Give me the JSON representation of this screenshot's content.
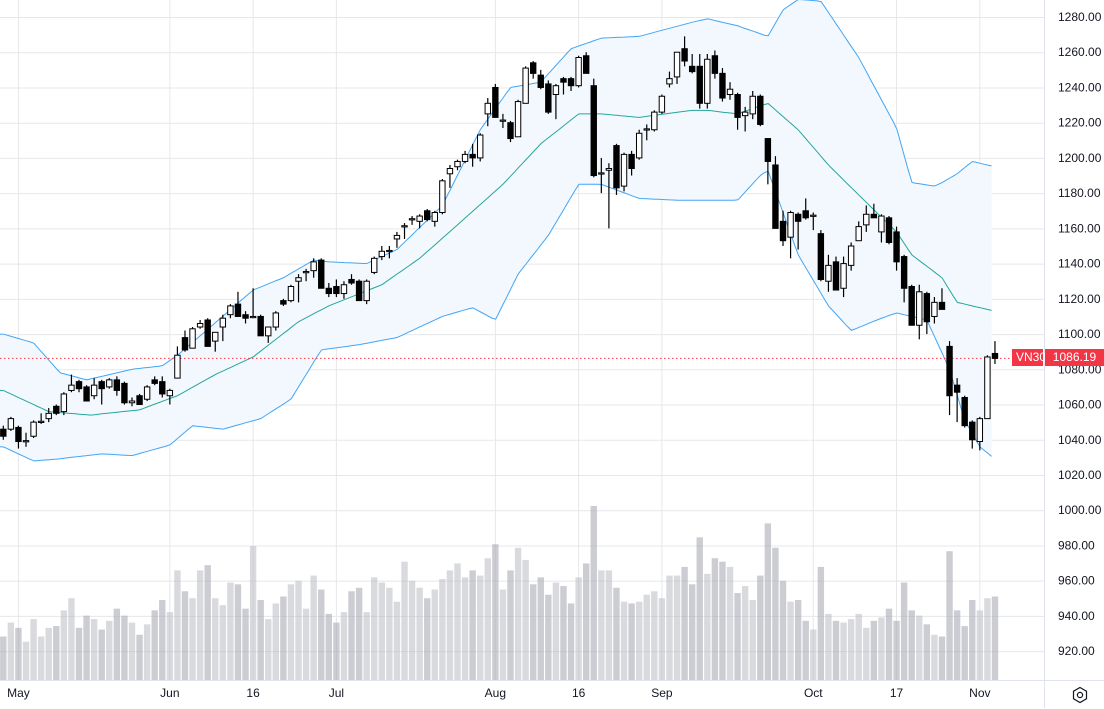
{
  "chart_data": {
    "type": "candlestick",
    "symbol": "VN30",
    "last_price": "1086.19",
    "ylim": [
      910,
      1290
    ],
    "y_ticks": [
      "1280.00",
      "1260.00",
      "1240.00",
      "1220.00",
      "1200.00",
      "1180.00",
      "1160.00",
      "1140.00",
      "1120.00",
      "1100.00",
      "1080.00",
      "1060.00",
      "1040.00",
      "1020.00",
      "1000.00",
      "980.00",
      "960.00",
      "940.00",
      "920.00"
    ],
    "x_ticks": [
      {
        "label": "May",
        "index": 2
      },
      {
        "label": "Jun",
        "index": 22
      },
      {
        "label": "16",
        "index": 33
      },
      {
        "label": "Jul",
        "index": 44
      },
      {
        "label": "Aug",
        "index": 65
      },
      {
        "label": "16",
        "index": 76
      },
      {
        "label": "Sep",
        "index": 87
      },
      {
        "label": "Oct",
        "index": 107
      },
      {
        "label": "17",
        "index": 118
      },
      {
        "label": "Nov",
        "index": 129
      }
    ],
    "candles_format": "[open, high, low, close]",
    "candles": [
      [
        1046,
        1048,
        1040,
        1042
      ],
      [
        1046,
        1053,
        1045,
        1052
      ],
      [
        1047,
        1048,
        1035,
        1039
      ],
      [
        1039,
        1044,
        1036,
        1039.5
      ],
      [
        1042,
        1051,
        1041,
        1050
      ],
      [
        1050,
        1055,
        1049,
        1050.5
      ],
      [
        1052,
        1058,
        1050,
        1055
      ],
      [
        1059,
        1060,
        1054,
        1055
      ],
      [
        1056,
        1067,
        1054,
        1066
      ],
      [
        1068,
        1077,
        1067,
        1071
      ],
      [
        1073,
        1074,
        1067,
        1069
      ],
      [
        1070,
        1071,
        1062,
        1062
      ],
      [
        1065,
        1075,
        1063,
        1071
      ],
      [
        1073,
        1074,
        1060,
        1069
      ],
      [
        1070,
        1075,
        1069,
        1074
      ],
      [
        1074,
        1076,
        1065,
        1068
      ],
      [
        1072,
        1073,
        1060,
        1061
      ],
      [
        1061,
        1064,
        1059,
        1062
      ],
      [
        1065,
        1066,
        1060,
        1060
      ],
      [
        1063,
        1071,
        1062,
        1070
      ],
      [
        1074,
        1076,
        1071,
        1072
      ],
      [
        1073,
        1076,
        1064,
        1066
      ],
      [
        1065,
        1069,
        1060,
        1068
      ],
      [
        1075,
        1093,
        1075,
        1088
      ],
      [
        1098,
        1102,
        1090,
        1091
      ],
      [
        1092,
        1104,
        1092,
        1103
      ],
      [
        1104,
        1108,
        1103,
        1106
      ],
      [
        1108,
        1109,
        1093,
        1093
      ],
      [
        1096,
        1101,
        1090,
        1101
      ],
      [
        1104,
        1111,
        1096,
        1109
      ],
      [
        1111,
        1117,
        1109,
        1116
      ],
      [
        1117,
        1124,
        1110,
        1110
      ],
      [
        1111,
        1113,
        1106,
        1109
      ],
      [
        1110,
        1126,
        1109,
        1110
      ],
      [
        1110,
        1111,
        1099,
        1099
      ],
      [
        1099,
        1104,
        1095,
        1104
      ],
      [
        1104,
        1113,
        1102,
        1112
      ],
      [
        1119,
        1120,
        1116,
        1117
      ],
      [
        1119,
        1128,
        1118,
        1127
      ],
      [
        1130,
        1134,
        1118,
        1132
      ],
      [
        1135,
        1137,
        1130,
        1135.5
      ],
      [
        1136,
        1143,
        1132,
        1141
      ],
      [
        1142,
        1143,
        1126,
        1126
      ],
      [
        1126,
        1129,
        1121,
        1123
      ],
      [
        1127,
        1131,
        1121,
        1123
      ],
      [
        1123,
        1130,
        1120,
        1128
      ],
      [
        1131,
        1134,
        1128,
        1129
      ],
      [
        1130,
        1131,
        1119,
        1119
      ],
      [
        1119,
        1131,
        1117,
        1130
      ],
      [
        1135,
        1144,
        1134,
        1143
      ],
      [
        1144,
        1150,
        1142,
        1147
      ],
      [
        1147,
        1150,
        1143,
        1147.5
      ],
      [
        1154,
        1158,
        1149,
        1156
      ],
      [
        1161,
        1163,
        1154,
        1161.5
      ],
      [
        1165,
        1167,
        1162,
        1165.5
      ],
      [
        1164,
        1168,
        1160,
        1167
      ],
      [
        1170,
        1171,
        1164,
        1165
      ],
      [
        1164,
        1170,
        1161,
        1169
      ],
      [
        1169,
        1188,
        1168,
        1187
      ],
      [
        1191,
        1196,
        1183,
        1194
      ],
      [
        1195,
        1199,
        1193,
        1198
      ],
      [
        1198,
        1204,
        1197,
        1202
      ],
      [
        1202,
        1208,
        1195,
        1200
      ],
      [
        1200,
        1214,
        1198,
        1213
      ],
      [
        1225,
        1234,
        1218,
        1231
      ],
      [
        1240,
        1242,
        1223,
        1223
      ],
      [
        1221,
        1225,
        1217,
        1221.5
      ],
      [
        1220,
        1221,
        1209,
        1211
      ],
      [
        1212,
        1233,
        1212,
        1232
      ],
      [
        1231,
        1252,
        1231,
        1251
      ],
      [
        1254,
        1255,
        1245,
        1248
      ],
      [
        1247,
        1250,
        1239,
        1240
      ],
      [
        1242,
        1244,
        1225,
        1226
      ],
      [
        1236,
        1242,
        1222,
        1241
      ],
      [
        1245,
        1246,
        1236,
        1243
      ],
      [
        1245,
        1246,
        1238,
        1241
      ],
      [
        1241,
        1258,
        1240,
        1257
      ],
      [
        1258,
        1260,
        1248,
        1248
      ],
      [
        1241,
        1245,
        1189,
        1190
      ],
      [
        1191,
        1200,
        1180,
        1191.5
      ],
      [
        1193,
        1197,
        1160,
        1194
      ],
      [
        1207,
        1208,
        1179,
        1183
      ],
      [
        1184,
        1203,
        1181,
        1202
      ],
      [
        1202,
        1204,
        1190,
        1194
      ],
      [
        1200,
        1216,
        1199,
        1214
      ],
      [
        1216,
        1219,
        1210,
        1216.5
      ],
      [
        1216,
        1227,
        1215,
        1226
      ],
      [
        1226,
        1236,
        1225,
        1235
      ],
      [
        1242,
        1249,
        1240,
        1245
      ],
      [
        1246,
        1260,
        1242,
        1260
      ],
      [
        1262,
        1269,
        1252,
        1255
      ],
      [
        1252,
        1259,
        1248,
        1249
      ],
      [
        1252,
        1259,
        1228,
        1231
      ],
      [
        1231,
        1259,
        1228,
        1256
      ],
      [
        1258,
        1261,
        1245,
        1248
      ],
      [
        1248,
        1251,
        1232,
        1234
      ],
      [
        1236,
        1243,
        1233,
        1239
      ],
      [
        1236,
        1237,
        1216,
        1223
      ],
      [
        1224,
        1229,
        1215,
        1226
      ],
      [
        1225,
        1238,
        1222,
        1235
      ],
      [
        1235,
        1236,
        1218,
        1219
      ],
      [
        1211,
        1211,
        1185,
        1198
      ],
      [
        1196,
        1201,
        1160,
        1160
      ],
      [
        1164,
        1170,
        1150,
        1153
      ],
      [
        1155,
        1170,
        1143,
        1169
      ],
      [
        1168,
        1169,
        1148,
        1164
      ],
      [
        1170,
        1177,
        1165,
        1166
      ],
      [
        1167,
        1169,
        1159,
        1167.5
      ],
      [
        1157,
        1159,
        1130,
        1131
      ],
      [
        1130,
        1145,
        1124,
        1139
      ],
      [
        1141,
        1144,
        1125,
        1125
      ],
      [
        1126,
        1144,
        1121,
        1140
      ],
      [
        1139,
        1152,
        1136,
        1150
      ],
      [
        1153,
        1164,
        1153,
        1161
      ],
      [
        1162,
        1173,
        1158,
        1168
      ],
      [
        1168,
        1174,
        1166,
        1166
      ],
      [
        1158,
        1168,
        1152,
        1167
      ],
      [
        1166,
        1167,
        1151,
        1152
      ],
      [
        1158,
        1161,
        1136,
        1141
      ],
      [
        1144,
        1145,
        1118,
        1126
      ],
      [
        1127,
        1128,
        1105,
        1105
      ],
      [
        1105,
        1128,
        1097,
        1124
      ],
      [
        1123,
        1124,
        1100,
        1107
      ],
      [
        1110,
        1121,
        1106,
        1118
      ],
      [
        1118,
        1126,
        1114,
        1114
      ],
      [
        1093,
        1096,
        1054,
        1065
      ],
      [
        1071,
        1075,
        1050,
        1067
      ],
      [
        1064,
        1065,
        1047,
        1048
      ],
      [
        1050,
        1051,
        1035,
        1040
      ],
      [
        1039,
        1053,
        1034,
        1052
      ],
      [
        1052,
        1088,
        1052,
        1087
      ],
      [
        1089,
        1096,
        1083,
        1086.19
      ]
    ],
    "volume_relative_pct": [
      25,
      33,
      30,
      22,
      35,
      25,
      30,
      31,
      40,
      47,
      30,
      37,
      35,
      29,
      34,
      41,
      37,
      33,
      26,
      32,
      40,
      46,
      39,
      63,
      51,
      47,
      63,
      66,
      47,
      43,
      56,
      55,
      41,
      77,
      46,
      35,
      44,
      48,
      55,
      57,
      41,
      60,
      52,
      38,
      33,
      39,
      51,
      53,
      39,
      59,
      56,
      53,
      45,
      68,
      57,
      53,
      47,
      52,
      58,
      63,
      67,
      59,
      63,
      60,
      70,
      78,
      52,
      63,
      76,
      69,
      55,
      59,
      49,
      56,
      54,
      44,
      59,
      67,
      100,
      63,
      63,
      53,
      45,
      44,
      45,
      49,
      51,
      47,
      60,
      60,
      65,
      55,
      82,
      61,
      70,
      68,
      65,
      50,
      54,
      46,
      60,
      90,
      76,
      57,
      45,
      46,
      34,
      29,
      65,
      38,
      34,
      33,
      35,
      38,
      30,
      34,
      36,
      41,
      34,
      56,
      40,
      37,
      32,
      26,
      25,
      74,
      40,
      31,
      46,
      40,
      47,
      48
    ],
    "bollinger": {
      "period_note": "keypoints as [candle_index, price]",
      "upper": [
        [
          0,
          1100
        ],
        [
          4,
          1095
        ],
        [
          7.5,
          1078
        ],
        [
          11,
          1074
        ],
        [
          17,
          1080
        ],
        [
          21,
          1082
        ],
        [
          23,
          1088
        ],
        [
          26,
          1099
        ],
        [
          33,
          1125
        ],
        [
          37,
          1132
        ],
        [
          41,
          1142
        ],
        [
          43,
          1141
        ],
        [
          48,
          1140
        ],
        [
          52,
          1148
        ],
        [
          58,
          1173
        ],
        [
          63,
          1216
        ],
        [
          67,
          1240
        ],
        [
          71,
          1243
        ],
        [
          75,
          1262
        ],
        [
          79,
          1268
        ],
        [
          84,
          1269
        ],
        [
          91,
          1277
        ],
        [
          93,
          1279
        ],
        [
          97,
          1275
        ],
        [
          101,
          1269
        ],
        [
          103,
          1284
        ],
        [
          105,
          1290
        ],
        [
          108,
          1289
        ],
        [
          113,
          1257
        ],
        [
          118,
          1217
        ],
        [
          120,
          1186
        ],
        [
          123,
          1184
        ],
        [
          124,
          1186
        ],
        [
          126,
          1191
        ],
        [
          128,
          1198
        ],
        [
          131,
          1195
        ]
      ],
      "middle": [
        [
          0,
          1068
        ],
        [
          6,
          1056
        ],
        [
          11.5,
          1054
        ],
        [
          18,
          1057
        ],
        [
          23,
          1065
        ],
        [
          28,
          1077
        ],
        [
          33,
          1087
        ],
        [
          39,
          1107
        ],
        [
          43,
          1116
        ],
        [
          50,
          1128
        ],
        [
          55,
          1143
        ],
        [
          60,
          1162
        ],
        [
          66,
          1185
        ],
        [
          71,
          1208
        ],
        [
          76,
          1225
        ],
        [
          79,
          1225
        ],
        [
          84,
          1223
        ],
        [
          91,
          1227
        ],
        [
          93,
          1227
        ],
        [
          97,
          1225
        ],
        [
          101,
          1231
        ],
        [
          105,
          1216
        ],
        [
          109,
          1196
        ],
        [
          113,
          1179
        ],
        [
          118,
          1158
        ],
        [
          120,
          1145
        ],
        [
          124,
          1132
        ],
        [
          126,
          1118
        ],
        [
          131,
          1113
        ]
      ],
      "lower": [
        [
          0,
          1036
        ],
        [
          4,
          1028
        ],
        [
          7,
          1029
        ],
        [
          13,
          1032
        ],
        [
          17,
          1031
        ],
        [
          22,
          1037
        ],
        [
          25,
          1048
        ],
        [
          29,
          1046
        ],
        [
          34,
          1052
        ],
        [
          38,
          1063
        ],
        [
          42,
          1091
        ],
        [
          47,
          1094
        ],
        [
          52,
          1098
        ],
        [
          58,
          1110
        ],
        [
          62,
          1115
        ],
        [
          65,
          1108
        ],
        [
          68,
          1134
        ],
        [
          72,
          1156
        ],
        [
          76,
          1185
        ],
        [
          79,
          1185
        ],
        [
          84,
          1177
        ],
        [
          89,
          1176
        ],
        [
          97,
          1176
        ],
        [
          100,
          1190
        ],
        [
          101,
          1193
        ],
        [
          105,
          1145
        ],
        [
          109,
          1116
        ],
        [
          112,
          1102
        ],
        [
          116,
          1109
        ],
        [
          118,
          1112
        ],
        [
          122,
          1108
        ],
        [
          125,
          1080
        ],
        [
          127,
          1051
        ],
        [
          129,
          1036
        ],
        [
          131,
          1029
        ]
      ]
    },
    "colors": {
      "candle": "#000000",
      "band_line": "#42a5f5",
      "band_fill": "#f2f8fe",
      "middle_line": "#26a69a",
      "last_price": "#f23645",
      "volume": "#c5c6cc",
      "grid": "#e6e7ea"
    },
    "grid": true
  },
  "ui": {
    "settings_icon": "gear-icon"
  }
}
